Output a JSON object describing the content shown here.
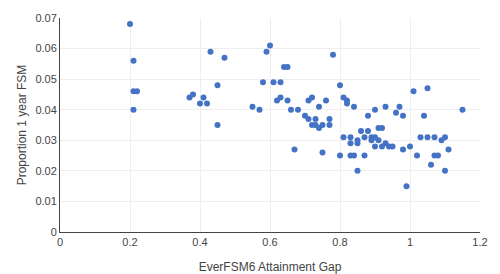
{
  "chart_data": {
    "type": "scatter",
    "xlabel": "EverFSM6 Attainment Gap",
    "ylabel": "Proportion 1 year FSM",
    "x": [
      0.2,
      0.21,
      0.21,
      0.21,
      0.22,
      0.37,
      0.38,
      0.4,
      0.41,
      0.42,
      0.43,
      0.45,
      0.45,
      0.47,
      0.55,
      0.57,
      0.58,
      0.59,
      0.6,
      0.61,
      0.62,
      0.63,
      0.63,
      0.64,
      0.65,
      0.65,
      0.66,
      0.67,
      0.68,
      0.7,
      0.71,
      0.71,
      0.72,
      0.72,
      0.73,
      0.73,
      0.74,
      0.74,
      0.75,
      0.75,
      0.76,
      0.77,
      0.77,
      0.78,
      0.8,
      0.8,
      0.81,
      0.81,
      0.82,
      0.82,
      0.83,
      0.83,
      0.83,
      0.84,
      0.84,
      0.85,
      0.85,
      0.85,
      0.86,
      0.87,
      0.87,
      0.88,
      0.88,
      0.89,
      0.89,
      0.9,
      0.9,
      0.9,
      0.91,
      0.91,
      0.92,
      0.92,
      0.93,
      0.93,
      0.94,
      0.95,
      0.96,
      0.97,
      0.98,
      0.98,
      0.99,
      1.0,
      1.01,
      1.02,
      1.03,
      1.04,
      1.05,
      1.05,
      1.06,
      1.07,
      1.07,
      1.08,
      1.09,
      1.1,
      1.1,
      1.11,
      1.15
    ],
    "values": [
      0.068,
      0.056,
      0.046,
      0.04,
      0.046,
      0.044,
      0.045,
      0.042,
      0.044,
      0.042,
      0.059,
      0.048,
      0.035,
      0.057,
      0.041,
      0.04,
      0.049,
      0.059,
      0.061,
      0.049,
      0.043,
      0.049,
      0.044,
      0.054,
      0.054,
      0.043,
      0.04,
      0.027,
      0.04,
      0.038,
      0.043,
      0.037,
      0.035,
      0.044,
      0.037,
      0.035,
      0.041,
      0.034,
      0.035,
      0.026,
      0.043,
      0.037,
      0.035,
      0.058,
      0.048,
      0.025,
      0.044,
      0.031,
      0.043,
      0.042,
      0.031,
      0.029,
      0.025,
      0.041,
      0.025,
      0.03,
      0.029,
      0.02,
      0.033,
      0.031,
      0.025,
      0.033,
      0.038,
      0.031,
      0.03,
      0.04,
      0.028,
      0.031,
      0.034,
      0.03,
      0.034,
      0.028,
      0.041,
      0.029,
      0.028,
      0.028,
      0.039,
      0.041,
      0.027,
      0.038,
      0.015,
      0.028,
      0.046,
      0.025,
      0.031,
      0.038,
      0.047,
      0.031,
      0.022,
      0.031,
      0.025,
      0.025,
      0.03,
      0.02,
      0.031,
      0.027,
      0.04
    ],
    "color": "#4472C4",
    "xlim": [
      0,
      1.2
    ],
    "ylim": [
      0,
      0.07
    ],
    "xticks": [
      0,
      0.2,
      0.4,
      0.6,
      0.8,
      1,
      1.2
    ],
    "yticks": [
      0,
      0.01,
      0.02,
      0.03,
      0.04,
      0.05,
      0.06,
      0.07
    ],
    "grid": true
  }
}
